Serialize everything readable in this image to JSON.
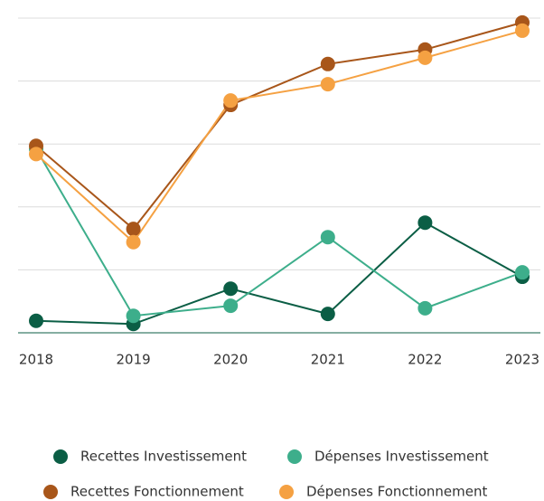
{
  "chart_data": {
    "type": "line",
    "categories": [
      "2018",
      "2019",
      "2020",
      "2021",
      "2022",
      "2023"
    ],
    "series": [
      {
        "name": "Recettes Investissement",
        "color": "#0b5e45",
        "values": [
          0.19,
          0.14,
          0.7,
          0.3,
          1.75,
          0.89
        ]
      },
      {
        "name": "Dépenses Investissement",
        "color": "#3dae8b",
        "values": [
          2.92,
          0.27,
          0.43,
          1.52,
          0.39,
          0.96
        ]
      },
      {
        "name": "Recettes Fonctionnement",
        "color": "#a8561a",
        "values": [
          2.97,
          1.65,
          3.62,
          4.27,
          4.5,
          4.93
        ]
      },
      {
        "name": "Dépenses Fonctionnement",
        "color": "#f5a142",
        "values": [
          2.84,
          1.44,
          3.69,
          3.95,
          4.37,
          4.8
        ]
      }
    ],
    "ylim": [
      0,
      5
    ],
    "yticks": [
      0,
      1,
      2,
      3,
      4,
      5
    ],
    "grid": true
  }
}
